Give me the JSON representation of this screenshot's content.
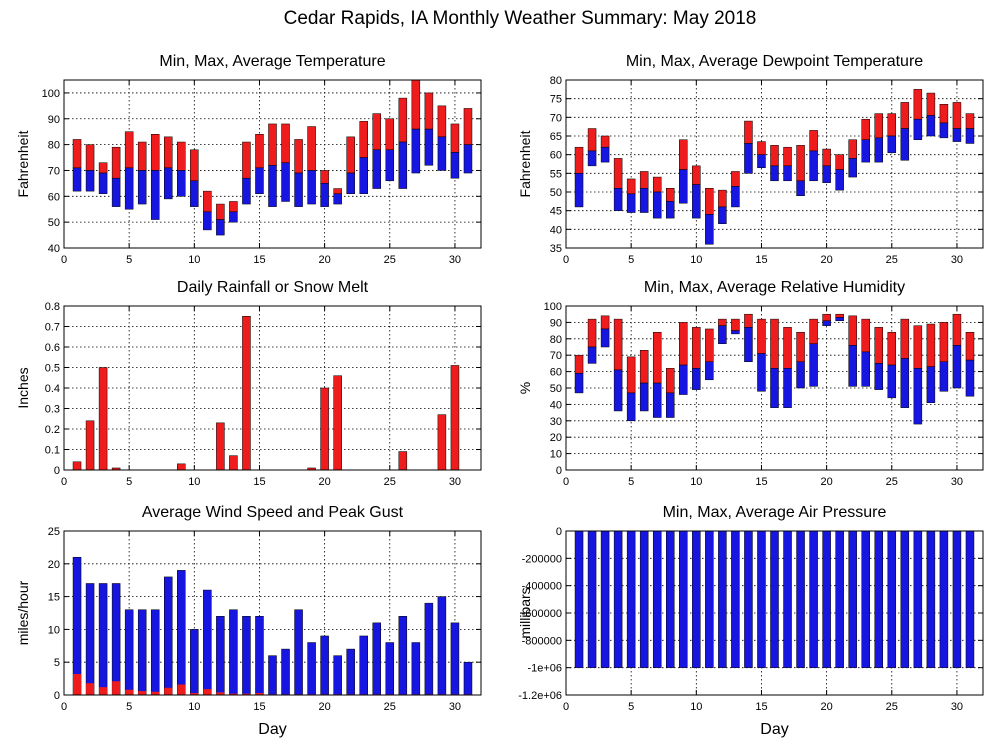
{
  "page": {
    "title": "Cedar Rapids, IA Monthly Weather Summary: May 2018"
  },
  "colors": {
    "red": "#ee1c1c",
    "blue": "#1616e0",
    "grid": "#000000"
  },
  "chart_data": [
    {
      "id": "temp",
      "type": "bar",
      "subtype": "floating-range",
      "title": "Min, Max, Average Temperature",
      "xlabel": "",
      "ylabel": "Fahrenheit",
      "xlim": [
        0,
        32
      ],
      "ylim": [
        40,
        105
      ],
      "xticks": [
        0,
        5,
        10,
        15,
        20,
        25,
        30
      ],
      "yticks": [
        40,
        50,
        60,
        70,
        80,
        90,
        100
      ],
      "ytick_labels": [
        "40",
        "50",
        "60",
        "70",
        "80",
        "90",
        "100"
      ],
      "grid": true,
      "x": [
        1,
        2,
        3,
        4,
        5,
        6,
        7,
        8,
        9,
        10,
        11,
        12,
        13,
        14,
        15,
        16,
        17,
        18,
        19,
        20,
        21,
        22,
        23,
        24,
        25,
        26,
        27,
        28,
        29,
        30,
        31
      ],
      "max": [
        82,
        80,
        73,
        79,
        85,
        81,
        84,
        83,
        81,
        78,
        62,
        57,
        58,
        81,
        84,
        88,
        88,
        82,
        87,
        70,
        63,
        83,
        89,
        92,
        90,
        98,
        105,
        100,
        95,
        88,
        94
      ],
      "avg": [
        71,
        70,
        69,
        67,
        71,
        70,
        70,
        71,
        70,
        66,
        54,
        51,
        54,
        67,
        71,
        72,
        73,
        69,
        70,
        65,
        61,
        69,
        75,
        78,
        78,
        81,
        86,
        86,
        83,
        77,
        80
      ],
      "min": [
        62,
        62,
        61,
        56,
        55,
        57,
        51,
        59,
        60,
        56,
        47,
        45,
        50,
        57,
        61,
        56,
        58,
        56,
        57,
        56,
        57,
        61,
        61,
        63,
        66,
        63,
        69,
        72,
        70,
        67,
        69
      ]
    },
    {
      "id": "dew",
      "type": "bar",
      "subtype": "floating-range",
      "title": "Min, Max, Average Dewpoint Temperature",
      "xlabel": "",
      "ylabel": "Fahrenheit",
      "xlim": [
        0,
        32
      ],
      "ylim": [
        35,
        80
      ],
      "xticks": [
        0,
        5,
        10,
        15,
        20,
        25,
        30
      ],
      "yticks": [
        35,
        40,
        45,
        50,
        55,
        60,
        65,
        70,
        75,
        80
      ],
      "ytick_labels": [
        "35",
        "40",
        "45",
        "50",
        "55",
        "60",
        "65",
        "70",
        "75",
        "80"
      ],
      "grid": true,
      "x": [
        1,
        2,
        3,
        4,
        5,
        6,
        7,
        8,
        9,
        10,
        11,
        12,
        13,
        14,
        15,
        16,
        17,
        18,
        19,
        20,
        21,
        22,
        23,
        24,
        25,
        26,
        27,
        28,
        29,
        30,
        31
      ],
      "max": [
        62,
        67,
        65,
        59,
        53.5,
        55.5,
        54,
        51,
        64,
        57,
        51,
        50.5,
        55.5,
        69,
        63.5,
        62.5,
        62,
        62.5,
        66.5,
        61.5,
        60,
        64,
        69.5,
        71,
        71,
        74,
        77.5,
        76.5,
        73.5,
        74,
        71
      ],
      "avg": [
        55,
        61,
        62,
        51,
        49.5,
        51,
        50,
        47.5,
        56,
        52,
        44,
        46,
        51.5,
        63,
        60,
        57,
        57,
        53,
        61,
        57,
        56,
        59,
        64,
        64.5,
        65,
        67,
        69.5,
        70.5,
        68.5,
        67,
        67
      ],
      "min": [
        46,
        57,
        58,
        45,
        44.5,
        44.5,
        43,
        43,
        47,
        43,
        36,
        41.5,
        46,
        55,
        56.5,
        53,
        53,
        49,
        53,
        52.5,
        50.5,
        54,
        58,
        58,
        60.5,
        58.5,
        64,
        65,
        64.5,
        63.5,
        63
      ]
    },
    {
      "id": "rain",
      "type": "bar",
      "title": "Daily Rainfall or Snow Melt",
      "xlabel": "",
      "ylabel": "Inches",
      "xlim": [
        0,
        32
      ],
      "ylim": [
        0,
        0.8
      ],
      "xticks": [
        0,
        5,
        10,
        15,
        20,
        25,
        30
      ],
      "yticks": [
        0,
        0.1,
        0.2,
        0.3,
        0.4,
        0.5,
        0.6,
        0.7,
        0.8
      ],
      "ytick_labels": [
        "0",
        "0.1",
        "0.2",
        "0.3",
        "0.4",
        "0.5",
        "0.6",
        "0.7",
        "0.8"
      ],
      "grid": true,
      "x": [
        1,
        2,
        3,
        4,
        5,
        6,
        7,
        8,
        9,
        10,
        11,
        12,
        13,
        14,
        15,
        16,
        17,
        18,
        19,
        20,
        21,
        22,
        23,
        24,
        25,
        26,
        27,
        28,
        29,
        30,
        31
      ],
      "values": [
        0.04,
        0.24,
        0.5,
        0.01,
        0,
        0,
        0,
        0,
        0.03,
        0,
        0,
        0.23,
        0.07,
        0.75,
        0,
        0,
        0,
        0,
        0.01,
        0.4,
        0.46,
        0,
        0,
        0,
        0,
        0.09,
        0,
        0,
        0.27,
        0.51,
        0
      ]
    },
    {
      "id": "rh",
      "type": "bar",
      "subtype": "floating-range",
      "title": "Min, Max, Average Relative Humidity",
      "xlabel": "",
      "ylabel": "%",
      "xlim": [
        0,
        32
      ],
      "ylim": [
        0,
        100
      ],
      "xticks": [
        0,
        5,
        10,
        15,
        20,
        25,
        30
      ],
      "yticks": [
        0,
        10,
        20,
        30,
        40,
        50,
        60,
        70,
        80,
        90,
        100
      ],
      "ytick_labels": [
        "0",
        "10",
        "20",
        "30",
        "40",
        "50",
        "60",
        "70",
        "80",
        "90",
        "100"
      ],
      "grid": true,
      "x": [
        1,
        2,
        3,
        4,
        5,
        6,
        7,
        8,
        9,
        10,
        11,
        12,
        13,
        14,
        15,
        16,
        17,
        18,
        19,
        20,
        21,
        22,
        23,
        24,
        25,
        26,
        27,
        28,
        29,
        30,
        31
      ],
      "max": [
        70,
        92,
        94,
        92,
        69,
        73,
        84,
        62,
        90,
        87,
        86,
        92,
        92,
        95,
        92,
        92,
        87,
        84,
        92,
        95,
        95,
        94,
        92,
        87,
        84,
        92,
        88,
        89,
        90,
        95,
        84
      ],
      "avg": [
        59,
        75,
        86,
        61,
        47,
        53,
        53,
        47,
        64,
        62,
        66,
        88,
        85,
        87,
        71,
        62,
        62,
        66,
        77,
        91,
        93,
        76,
        72,
        65,
        64,
        68,
        62,
        63,
        66,
        76,
        67
      ],
      "min": [
        47,
        65,
        75,
        36,
        30,
        36,
        32,
        32,
        46,
        49,
        55,
        77,
        83,
        66,
        48,
        38,
        38,
        50,
        51,
        88,
        91,
        51,
        51,
        49,
        44,
        38,
        28,
        41,
        48,
        50,
        45
      ]
    },
    {
      "id": "wind",
      "type": "bar",
      "title": "Average Wind Speed and Peak Gust",
      "xlabel": "Day",
      "ylabel": "miles/hour",
      "xlim": [
        0,
        32
      ],
      "ylim": [
        0,
        25
      ],
      "xticks": [
        0,
        5,
        10,
        15,
        20,
        25,
        30
      ],
      "yticks": [
        0,
        5,
        10,
        15,
        20,
        25
      ],
      "ytick_labels": [
        "0",
        "5",
        "10",
        "15",
        "20",
        "25"
      ],
      "grid": true,
      "x": [
        1,
        2,
        3,
        4,
        5,
        6,
        7,
        8,
        9,
        10,
        11,
        12,
        13,
        14,
        15,
        16,
        17,
        18,
        19,
        20,
        21,
        22,
        23,
        24,
        25,
        26,
        27,
        28,
        29,
        30,
        31
      ],
      "series": [
        {
          "role": "gust",
          "values": [
            21,
            17,
            17,
            17,
            13,
            13,
            13,
            18,
            19,
            10,
            16,
            12,
            13,
            12,
            12,
            6,
            7,
            13,
            8,
            9,
            6,
            7,
            9,
            11,
            8,
            12,
            8,
            14,
            15,
            11,
            5
          ]
        },
        {
          "role": "average",
          "values": [
            3.2,
            1.8,
            1.2,
            2.1,
            0.8,
            0.6,
            0.5,
            1.1,
            1.6,
            0.3,
            0.9,
            0.4,
            0.2,
            0.2,
            0.3,
            0.1,
            0.1,
            0.1,
            0.1,
            0.1,
            0.1,
            0.1,
            0.1,
            0.1,
            0.1,
            0.1,
            0.1,
            0.1,
            0.1,
            0.1,
            0.1
          ]
        }
      ]
    },
    {
      "id": "pres",
      "type": "bar",
      "subtype": "floating-range",
      "title": "Min, Max, Average Air Pressure",
      "xlabel": "Day",
      "ylabel": "millibars",
      "xlim": [
        0,
        32
      ],
      "ylim": [
        -1200000,
        0
      ],
      "xticks": [
        0,
        5,
        10,
        15,
        20,
        25,
        30
      ],
      "yticks": [
        -1200000,
        -1000000,
        -800000,
        -600000,
        -400000,
        -200000,
        0
      ],
      "ytick_labels": [
        "-1.2e+06",
        "-1e+06",
        "-800000",
        "-600000",
        "-400000",
        "-200000",
        "0"
      ],
      "grid": true,
      "x": [
        1,
        2,
        3,
        4,
        5,
        6,
        7,
        8,
        9,
        10,
        11,
        12,
        13,
        14,
        15,
        16,
        17,
        18,
        19,
        20,
        21,
        22,
        23,
        24,
        25,
        26,
        27,
        28,
        29,
        30,
        31
      ],
      "max": [
        0,
        0,
        0,
        0,
        0,
        0,
        0,
        0,
        0,
        0,
        0,
        0,
        0,
        0,
        0,
        0,
        0,
        0,
        0,
        0,
        0,
        0,
        0,
        0,
        0,
        0,
        0,
        0,
        0,
        0,
        0
      ],
      "avg": [
        0,
        0,
        0,
        0,
        0,
        0,
        0,
        0,
        0,
        0,
        0,
        0,
        0,
        0,
        0,
        0,
        0,
        0,
        0,
        0,
        0,
        0,
        0,
        0,
        0,
        0,
        0,
        0,
        0,
        0,
        0
      ],
      "min": [
        -1000000,
        -1000000,
        -1000000,
        -1000000,
        -1000000,
        -1000000,
        -1000000,
        -1000000,
        -1000000,
        -1000000,
        -1000000,
        -1000000,
        -1000000,
        -1000000,
        -1000000,
        -1000000,
        -1000000,
        -1000000,
        -1000000,
        -1000000,
        -1000000,
        -1000000,
        -1000000,
        -1000000,
        -1000000,
        -1000000,
        -1000000,
        -1000000,
        -1000000,
        -1000000,
        -1000000
      ]
    }
  ]
}
